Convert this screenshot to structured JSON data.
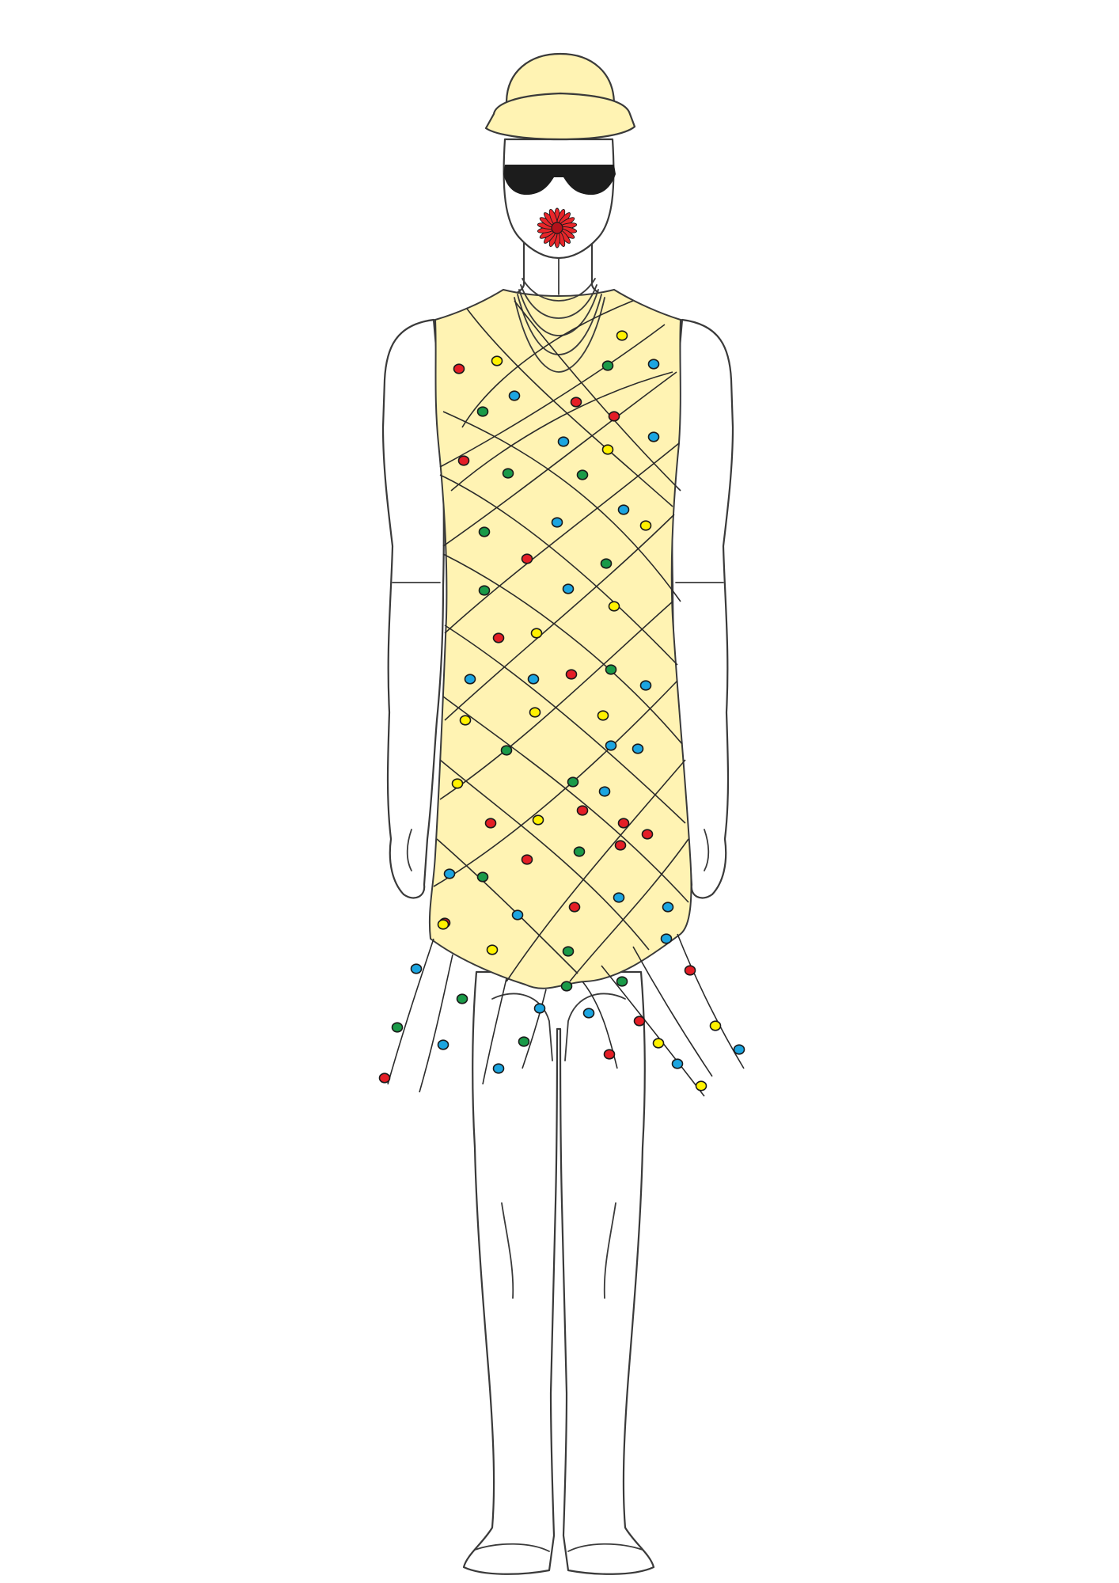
{
  "figure": {
    "subject": "fashion-croquis-front-view",
    "accessories": [
      "beanie-hat",
      "sunglasses",
      "red-flower-at-mouth",
      "layered-necklaces"
    ],
    "garment": "sleeveless-shift-dress-with-string-light-net"
  },
  "colors": {
    "background": "#ffffff",
    "outline": "#3a3a3a",
    "garment_fill": "#fff3b3",
    "hat_fill": "#fff3b3",
    "sunglasses": "#1c1c1c",
    "flower": "#e8262a",
    "cord": "#2b2b2b"
  },
  "bulb_palette": {
    "red": "#e41e26",
    "yellow": "#fff200",
    "green": "#1a9a48",
    "blue": "#1ca5e0"
  },
  "bulb_counts": {
    "red": 18,
    "yellow": 16,
    "green": 17,
    "blue": 24
  }
}
